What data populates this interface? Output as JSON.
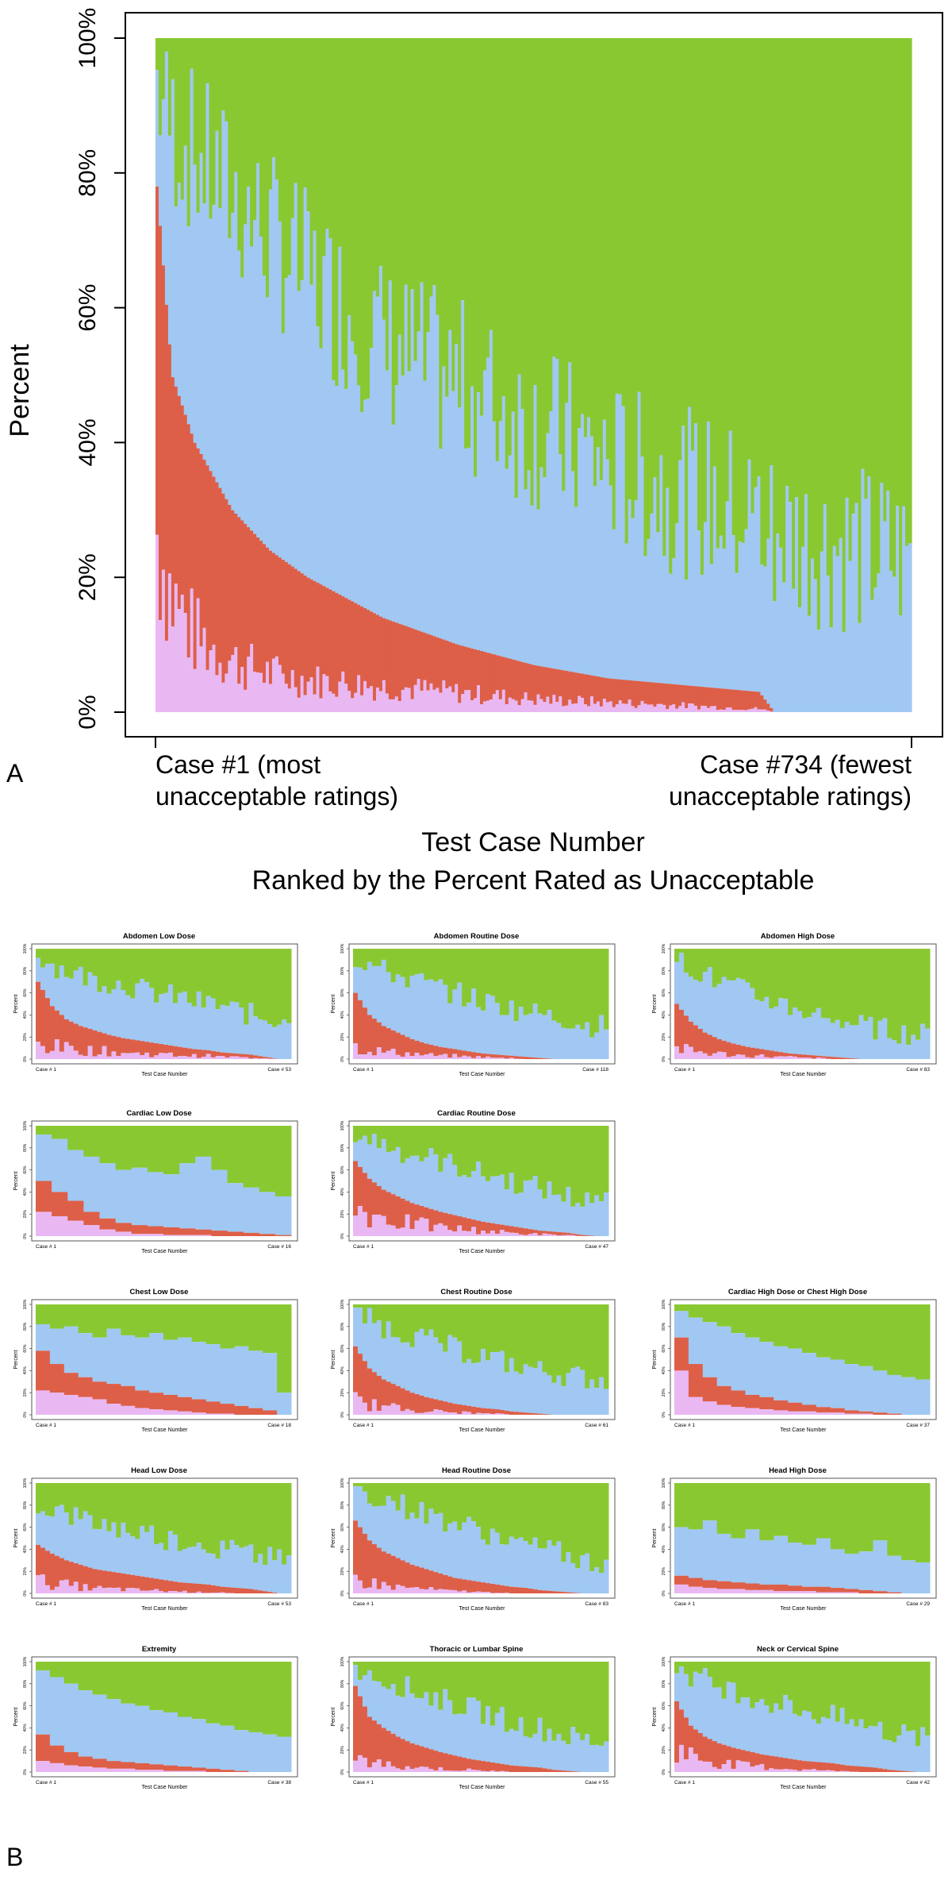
{
  "panel_labels": {
    "a": "A",
    "b": "B"
  },
  "colors": {
    "pink": "#e9b8f3",
    "red": "#dd5f48",
    "blue": "#a0c8f2",
    "green": "#8ac832"
  },
  "chart_data": [
    {
      "id": "main",
      "type": "stacked-bar-ranked",
      "title": "",
      "xlabel": "Test Case Number",
      "xlabel_line2": "Ranked by the Percent Rated as Unacceptable",
      "ylabel": "Percent",
      "y_ticks": [
        "0%",
        "20%",
        "40%",
        "60%",
        "80%",
        "100%"
      ],
      "ylim": [
        0,
        100
      ],
      "x_start_label": [
        "Case #1 (most",
        "unacceptable ratings)"
      ],
      "x_end_label": [
        "Case #734 (fewest",
        "unacceptable ratings)"
      ],
      "n_cases": 734,
      "categories_order_bottom_to_top": [
        "pink",
        "red",
        "blue",
        "green"
      ],
      "profile": {
        "x_fraction": [
          0,
          0.02,
          0.05,
          0.1,
          0.15,
          0.2,
          0.3,
          0.4,
          0.5,
          0.6,
          0.7,
          0.8,
          0.82,
          0.9,
          1.0
        ],
        "pink_top": [
          28,
          18,
          12,
          8,
          6,
          5,
          4,
          3,
          2,
          1.5,
          1,
          0.5,
          0,
          0,
          0
        ],
        "red_top": [
          78,
          50,
          40,
          30,
          24,
          20,
          14,
          10,
          7,
          5,
          4,
          3,
          0,
          0,
          0
        ],
        "blue_top": [
          95,
          88,
          84,
          78,
          72,
          66,
          56,
          50,
          44,
          38,
          34,
          30,
          28,
          26,
          24
        ]
      }
    },
    {
      "id": "abdomen-low",
      "type": "stacked-bar-ranked",
      "title": "Abdomen Low Dose",
      "xlabel": "Test Case Number",
      "ylabel": "Percent",
      "y_ticks": [
        "0%",
        "20%",
        "40%",
        "60%",
        "80%",
        "100%"
      ],
      "x_start_label": "Case # 1",
      "x_end_label": "Case # 53",
      "n_cases": 53,
      "pink_top": [
        14,
        12,
        10,
        9,
        8,
        7,
        6,
        5,
        5,
        4,
        4,
        3,
        3,
        2,
        2,
        1,
        1,
        0
      ],
      "red_top": [
        70,
        48,
        36,
        30,
        26,
        22,
        19,
        17,
        15,
        13,
        11,
        9,
        8,
        6,
        5,
        4,
        2,
        0
      ],
      "blue_top": [
        95,
        86,
        80,
        76,
        72,
        70,
        68,
        64,
        60,
        58,
        56,
        52,
        50,
        48,
        44,
        40,
        38,
        36
      ]
    },
    {
      "id": "abdomen-routine",
      "type": "stacked-bar-ranked",
      "title": "Abdomen Routine Dose",
      "xlabel": "Test Case Number",
      "ylabel": "Percent",
      "y_ticks": [
        "0%",
        "20%",
        "40%",
        "60%",
        "80%",
        "100%"
      ],
      "x_start_label": "Case # 1",
      "x_end_label": "Case # 118",
      "n_cases": 118,
      "pink_top": [
        12,
        9,
        7,
        6,
        5,
        4,
        3,
        3,
        2,
        2,
        1,
        1,
        0,
        0,
        0,
        0,
        0,
        0
      ],
      "red_top": [
        60,
        40,
        30,
        24,
        18,
        14,
        11,
        9,
        7,
        5,
        4,
        3,
        2,
        1,
        0,
        0,
        0,
        0
      ],
      "blue_top": [
        92,
        86,
        80,
        76,
        72,
        68,
        64,
        60,
        56,
        52,
        50,
        46,
        44,
        40,
        38,
        36,
        32,
        30
      ]
    },
    {
      "id": "abdomen-high",
      "type": "stacked-bar-ranked",
      "title": "Abdomen High Dose",
      "xlabel": "Test Case Number",
      "ylabel": "Percent",
      "y_ticks": [
        "0%",
        "20%",
        "40%",
        "60%",
        "80%",
        "100%"
      ],
      "x_start_label": "Case # 1",
      "x_end_label": "Case # 83",
      "n_cases": 83,
      "pink_top": [
        10,
        8,
        6,
        5,
        4,
        3,
        3,
        2,
        2,
        1,
        1,
        0,
        0,
        0,
        0,
        0,
        0,
        0
      ],
      "red_top": [
        50,
        34,
        24,
        18,
        14,
        11,
        9,
        7,
        5,
        4,
        3,
        2,
        1,
        0,
        0,
        0,
        0,
        0
      ],
      "blue_top": [
        90,
        84,
        76,
        70,
        66,
        60,
        56,
        52,
        48,
        44,
        40,
        38,
        34,
        30,
        28,
        26,
        24,
        22
      ]
    },
    {
      "id": "cardiac-low",
      "type": "stacked-bar-ranked",
      "title": "Cardiac Low Dose",
      "xlabel": "Test Case Number",
      "ylabel": "Percent",
      "y_ticks": [
        "0%",
        "20%",
        "40%",
        "60%",
        "80%",
        "100%"
      ],
      "x_start_label": "Case # 1",
      "x_end_label": "Case # 16",
      "n_cases": 16,
      "pink_top": [
        22,
        18,
        14,
        10,
        6,
        4,
        2,
        2,
        1,
        1,
        1,
        0,
        0,
        0,
        0,
        0
      ],
      "red_top": [
        50,
        40,
        32,
        22,
        16,
        12,
        10,
        9,
        8,
        7,
        6,
        5,
        4,
        3,
        2,
        1
      ],
      "blue_top": [
        92,
        88,
        78,
        72,
        66,
        60,
        62,
        58,
        56,
        66,
        72,
        60,
        48,
        44,
        40,
        36
      ]
    },
    {
      "id": "cardiac-routine",
      "type": "stacked-bar-ranked",
      "title": "Cardiac Routine Dose",
      "xlabel": "Test Case Number",
      "ylabel": "Percent",
      "y_ticks": [
        "0%",
        "20%",
        "40%",
        "60%",
        "80%",
        "100%"
      ],
      "x_start_label": "Case # 1",
      "x_end_label": "Case # 47",
      "n_cases": 47,
      "pink_top": [
        26,
        22,
        18,
        14,
        12,
        10,
        8,
        7,
        6,
        5,
        4,
        3,
        2,
        2,
        1,
        1,
        0,
        0
      ],
      "red_top": [
        68,
        52,
        42,
        36,
        30,
        26,
        22,
        19,
        16,
        13,
        11,
        9,
        7,
        5,
        4,
        3,
        1,
        0
      ],
      "blue_top": [
        94,
        88,
        84,
        78,
        74,
        72,
        68,
        64,
        60,
        56,
        54,
        50,
        46,
        44,
        40,
        36,
        32,
        30
      ]
    },
    {
      "id": "chest-low",
      "type": "stacked-bar-ranked",
      "title": "Chest Low Dose",
      "xlabel": "Test Case Number",
      "ylabel": "Percent",
      "y_ticks": [
        "0%",
        "20%",
        "40%",
        "60%",
        "80%",
        "100%"
      ],
      "x_start_label": "Case # 1",
      "x_end_label": "Case # 18",
      "n_cases": 18,
      "pink_top": [
        22,
        20,
        18,
        16,
        14,
        10,
        8,
        6,
        5,
        4,
        3,
        2,
        1,
        1,
        0,
        0,
        0,
        0
      ],
      "red_top": [
        58,
        46,
        38,
        34,
        30,
        28,
        26,
        22,
        20,
        18,
        16,
        14,
        12,
        10,
        8,
        6,
        4,
        0
      ],
      "blue_top": [
        82,
        78,
        80,
        74,
        70,
        78,
        72,
        70,
        74,
        68,
        70,
        66,
        64,
        60,
        62,
        58,
        56,
        20
      ]
    },
    {
      "id": "chest-routine",
      "type": "stacked-bar-ranked",
      "title": "Chest Routine Dose",
      "xlabel": "Test Case Number",
      "ylabel": "Percent",
      "y_ticks": [
        "0%",
        "20%",
        "40%",
        "60%",
        "80%",
        "100%"
      ],
      "x_start_label": "Case # 1",
      "x_end_label": "Case # 61",
      "n_cases": 61,
      "pink_top": [
        14,
        10,
        8,
        6,
        5,
        4,
        3,
        2,
        2,
        1,
        1,
        0,
        0,
        0,
        0,
        0,
        0,
        0
      ],
      "red_top": [
        62,
        42,
        32,
        26,
        20,
        16,
        13,
        10,
        8,
        6,
        5,
        3,
        2,
        1,
        0,
        0,
        0,
        0
      ],
      "blue_top": [
        94,
        86,
        80,
        76,
        72,
        68,
        64,
        60,
        56,
        54,
        50,
        46,
        44,
        40,
        38,
        36,
        34,
        32
      ]
    },
    {
      "id": "cardiac-chest-high",
      "type": "stacked-bar-ranked",
      "title": "Cardiac High Dose or Chest High Dose",
      "xlabel": "Test Case Number",
      "ylabel": "Percent",
      "y_ticks": [
        "0%",
        "20%",
        "40%",
        "60%",
        "80%",
        "100%"
      ],
      "x_start_label": "Case # 1",
      "x_end_label": "Case # 37",
      "n_cases": 37,
      "pink_top": [
        40,
        16,
        12,
        9,
        7,
        6,
        5,
        4,
        3,
        3,
        2,
        2,
        1,
        1,
        0,
        0,
        0,
        0
      ],
      "red_top": [
        70,
        46,
        34,
        26,
        22,
        18,
        16,
        13,
        11,
        9,
        7,
        6,
        4,
        3,
        2,
        1,
        0,
        0
      ],
      "blue_top": [
        94,
        88,
        84,
        80,
        74,
        70,
        66,
        62,
        60,
        56,
        52,
        50,
        46,
        44,
        40,
        36,
        34,
        32
      ]
    },
    {
      "id": "head-low",
      "type": "stacked-bar-ranked",
      "title": "Head Low Dose",
      "xlabel": "Test Case Number",
      "ylabel": "Percent",
      "y_ticks": [
        "0%",
        "20%",
        "40%",
        "60%",
        "80%",
        "100%"
      ],
      "x_start_label": "Case # 1",
      "x_end_label": "Case # 53",
      "n_cases": 53,
      "pink_top": [
        12,
        10,
        8,
        6,
        5,
        4,
        4,
        3,
        3,
        2,
        2,
        1,
        1,
        1,
        0,
        0,
        0,
        0
      ],
      "red_top": [
        44,
        36,
        30,
        26,
        22,
        20,
        18,
        16,
        14,
        12,
        10,
        9,
        8,
        6,
        5,
        4,
        2,
        0
      ],
      "blue_top": [
        82,
        76,
        72,
        68,
        64,
        62,
        58,
        56,
        54,
        50,
        48,
        46,
        44,
        40,
        38,
        34,
        32,
        30
      ]
    },
    {
      "id": "head-routine",
      "type": "stacked-bar-ranked",
      "title": "Head Routine Dose",
      "xlabel": "Test Case Number",
      "ylabel": "Percent",
      "y_ticks": [
        "0%",
        "20%",
        "40%",
        "60%",
        "80%",
        "100%"
      ],
      "x_start_label": "Case # 1",
      "x_end_label": "Case # 83",
      "n_cases": 83,
      "pink_top": [
        14,
        10,
        8,
        6,
        5,
        4,
        3,
        2,
        2,
        1,
        1,
        0,
        0,
        0,
        0,
        0,
        0,
        0
      ],
      "red_top": [
        66,
        48,
        38,
        32,
        26,
        22,
        18,
        14,
        12,
        10,
        8,
        6,
        5,
        3,
        2,
        1,
        0,
        0
      ],
      "blue_top": [
        96,
        90,
        86,
        82,
        76,
        72,
        68,
        64,
        60,
        56,
        52,
        48,
        44,
        40,
        38,
        34,
        30,
        28
      ]
    },
    {
      "id": "head-high",
      "type": "stacked-bar-ranked",
      "title": "Head High Dose",
      "xlabel": "Test Case Number",
      "ylabel": "Percent",
      "y_ticks": [
        "0%",
        "20%",
        "40%",
        "60%",
        "80%",
        "100%"
      ],
      "x_start_label": "Case # 1",
      "x_end_label": "Case # 29",
      "n_cases": 29,
      "pink_top": [
        8,
        6,
        5,
        4,
        4,
        3,
        3,
        2,
        2,
        2,
        1,
        1,
        1,
        0,
        0,
        0,
        0,
        0
      ],
      "red_top": [
        16,
        14,
        12,
        11,
        10,
        9,
        8,
        8,
        7,
        6,
        6,
        5,
        4,
        3,
        2,
        1,
        0,
        0
      ],
      "blue_top": [
        60,
        58,
        66,
        54,
        50,
        58,
        48,
        52,
        46,
        44,
        50,
        40,
        36,
        38,
        48,
        34,
        30,
        28
      ]
    },
    {
      "id": "extremity",
      "type": "stacked-bar-ranked",
      "title": "Extremity",
      "xlabel": "Test Case Number",
      "ylabel": "Percent",
      "y_ticks": [
        "0%",
        "20%",
        "40%",
        "60%",
        "80%",
        "100%"
      ],
      "x_start_label": "Case # 1",
      "x_end_label": "Case # 38",
      "n_cases": 38,
      "pink_top": [
        10,
        8,
        6,
        5,
        4,
        3,
        3,
        2,
        2,
        1,
        1,
        1,
        0,
        0,
        0,
        0,
        0,
        0
      ],
      "red_top": [
        34,
        24,
        18,
        14,
        12,
        10,
        9,
        8,
        7,
        6,
        5,
        4,
        3,
        2,
        1,
        0,
        0,
        0
      ],
      "blue_top": [
        92,
        86,
        80,
        74,
        70,
        66,
        62,
        60,
        56,
        54,
        50,
        48,
        44,
        42,
        38,
        36,
        34,
        32
      ]
    },
    {
      "id": "thoracic-lumbar",
      "type": "stacked-bar-ranked",
      "title": "Thoracic or Lumbar Spine",
      "xlabel": "Test Case Number",
      "ylabel": "Percent",
      "y_ticks": [
        "0%",
        "20%",
        "40%",
        "60%",
        "80%",
        "100%"
      ],
      "x_start_label": "Case # 1",
      "x_end_label": "Case # 55",
      "n_cases": 55,
      "pink_top": [
        12,
        9,
        7,
        6,
        5,
        4,
        3,
        2,
        2,
        1,
        1,
        0,
        0,
        0,
        0,
        0,
        0,
        0
      ],
      "red_top": [
        78,
        50,
        40,
        32,
        26,
        22,
        18,
        15,
        12,
        10,
        8,
        6,
        5,
        4,
        2,
        1,
        0,
        0
      ],
      "blue_top": [
        96,
        90,
        84,
        80,
        74,
        70,
        66,
        62,
        58,
        54,
        50,
        46,
        42,
        40,
        36,
        32,
        30,
        28
      ]
    },
    {
      "id": "neck-cervical",
      "type": "stacked-bar-ranked",
      "title": "Neck or Cervical Spine",
      "xlabel": "Test Case Number",
      "ylabel": "Percent",
      "y_ticks": [
        "0%",
        "20%",
        "40%",
        "60%",
        "80%",
        "100%"
      ],
      "x_start_label": "Case # 1",
      "x_end_label": "Case # 42",
      "n_cases": 42,
      "pink_top": [
        22,
        16,
        12,
        9,
        7,
        6,
        5,
        4,
        3,
        2,
        2,
        1,
        1,
        0,
        0,
        0,
        0,
        0
      ],
      "red_top": [
        64,
        42,
        32,
        26,
        22,
        19,
        16,
        14,
        12,
        10,
        9,
        8,
        6,
        5,
        4,
        2,
        1,
        0
      ],
      "blue_top": [
        94,
        88,
        84,
        78,
        74,
        70,
        66,
        62,
        60,
        56,
        52,
        50,
        46,
        44,
        40,
        36,
        34,
        30
      ]
    }
  ]
}
